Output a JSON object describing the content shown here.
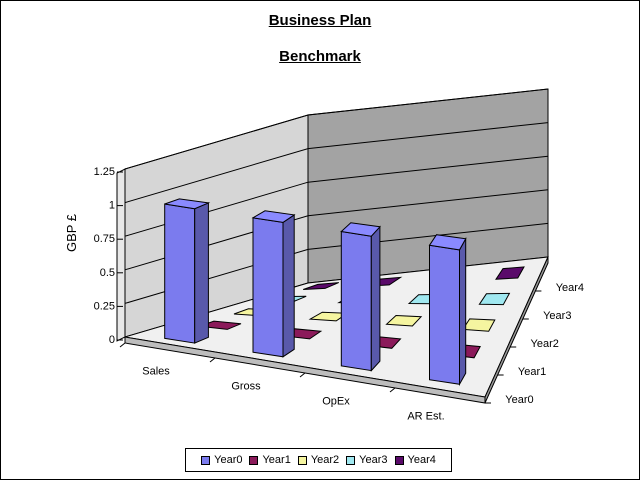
{
  "chart_data": {
    "type": "bar",
    "subtype": "3d-column",
    "title": "Business Plan",
    "subtitle": "Benchmark",
    "ylabel": "GBP £",
    "xlabel": "",
    "categories": [
      "Sales",
      "Gross",
      "OpEx",
      "AR Est."
    ],
    "series": [
      {
        "name": "Year0",
        "values": [
          1,
          1,
          1,
          1
        ],
        "color": "#7b7bee"
      },
      {
        "name": "Year1",
        "values": [
          0,
          0,
          0,
          0
        ],
        "color": "#8b1a5a"
      },
      {
        "name": "Year2",
        "values": [
          0,
          0,
          0,
          0
        ],
        "color": "#f5f5a0"
      },
      {
        "name": "Year3",
        "values": [
          0,
          0,
          0,
          0
        ],
        "color": "#a0e8f0"
      },
      {
        "name": "Year4",
        "values": [
          0,
          0,
          0,
          0
        ],
        "color": "#5a0a6a"
      }
    ],
    "yticks": [
      "0",
      "0.25",
      "0.5",
      "0.75",
      "1",
      "1.25"
    ],
    "ylim": [
      0,
      1.25
    ],
    "grid": true,
    "legend_position": "bottom"
  }
}
